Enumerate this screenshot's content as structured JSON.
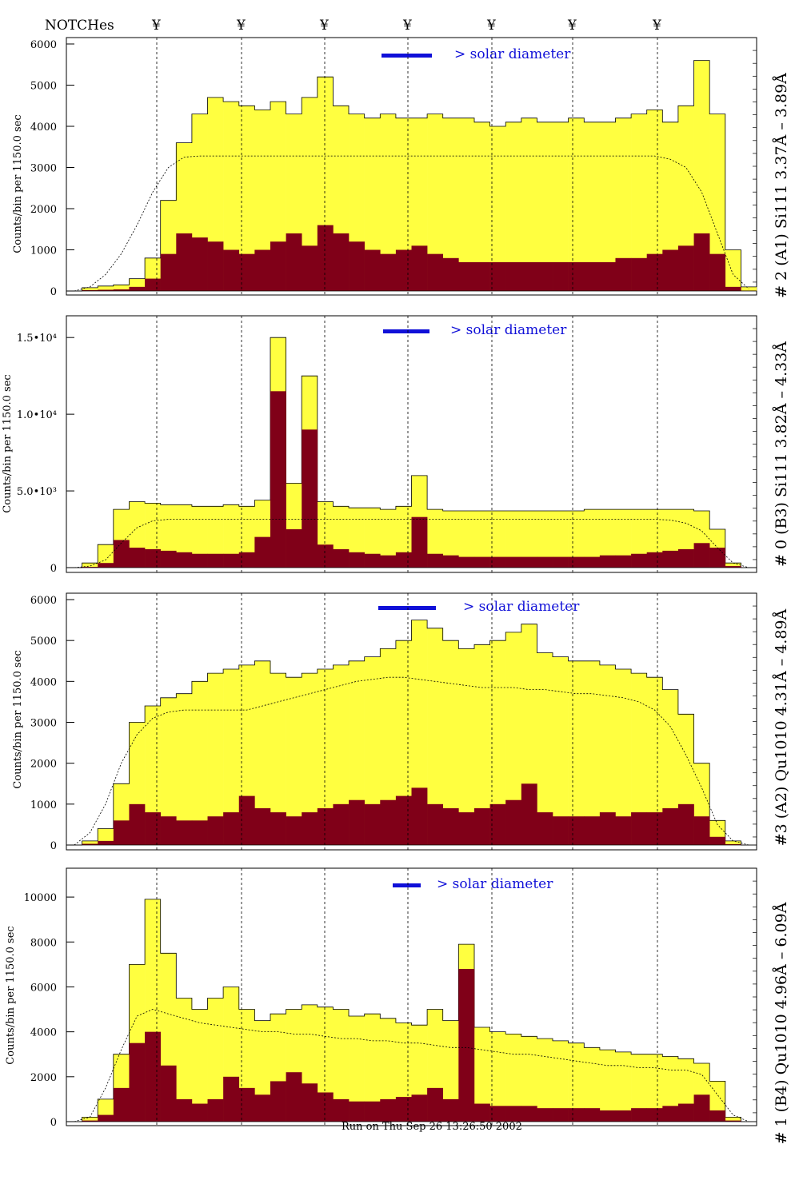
{
  "header": {
    "notches_label": "NOTCHes",
    "notch_marker": "¥"
  },
  "footer": {
    "run_text": "Run on Thu Sep 26 13:26:50 2002"
  },
  "colors": {
    "background": "#ffffff",
    "total_fill": "#ffff40",
    "filtered_fill": "#800018",
    "legend_bar": "#1010d8",
    "annotation_blue": "#1010d8"
  },
  "chart_data": [
    {
      "type": "bar",
      "subtype": "histogram",
      "panel_label": "# 2 (A1) Si111  3.37Å – 3.89Å",
      "ylabel": "Counts/bin per   1150.0 sec",
      "legend_text": "> solar diameter",
      "ylim": [
        0,
        6000
      ],
      "yticks": [
        {
          "v": 0,
          "t": "0"
        },
        {
          "v": 1000,
          "t": "1000"
        },
        {
          "v": 2000,
          "t": "2000"
        },
        {
          "v": 3000,
          "t": "3000"
        },
        {
          "v": 4000,
          "t": "4000"
        },
        {
          "v": 5000,
          "t": "5000"
        },
        {
          "v": 6000,
          "t": "6000"
        }
      ],
      "series": [
        {
          "values_total": [
            0,
            80,
            120,
            150,
            300,
            800,
            2200,
            3600,
            4300,
            4700,
            4600,
            4500,
            4400,
            4600,
            4300,
            4700,
            5200,
            4500,
            4300,
            4200,
            4300,
            4200,
            4200,
            4300,
            4200,
            4200,
            4100,
            4000,
            4100,
            4200,
            4100,
            4100,
            4200,
            4100,
            4100,
            4200,
            4300,
            4400,
            4100,
            4500,
            5600,
            4300,
            1000,
            100
          ]
        },
        {
          "values_filtered": [
            0,
            20,
            30,
            40,
            100,
            300,
            900,
            1400,
            1300,
            1200,
            1000,
            900,
            1000,
            1200,
            1400,
            1100,
            1600,
            1400,
            1200,
            1000,
            900,
            1000,
            1100,
            900,
            800,
            700,
            700,
            700,
            700,
            700,
            700,
            700,
            700,
            700,
            700,
            800,
            800,
            900,
            1000,
            1100,
            1400,
            900,
            100,
            10
          ]
        }
      ],
      "smooth_curve": [
        0,
        100,
        400,
        900,
        1600,
        2400,
        3000,
        3250,
        3280,
        3280,
        3280,
        3280,
        3280,
        3280,
        3280,
        3280,
        3280,
        3280,
        3280,
        3280,
        3280,
        3280,
        3280,
        3280,
        3280,
        3280,
        3280,
        3280,
        3280,
        3280,
        3280,
        3280,
        3280,
        3280,
        3280,
        3280,
        3280,
        3280,
        3200,
        3000,
        2400,
        1400,
        400,
        50
      ]
    },
    {
      "type": "bar",
      "subtype": "histogram",
      "panel_label": "# 0 (B3) Si111  3.82Å – 4.33Å",
      "ylabel": "Counts/bin per   1150.0 sec",
      "legend_text": "> solar diameter",
      "ylim": [
        0,
        16000
      ],
      "yticks": [
        {
          "v": 0,
          "t": "0"
        },
        {
          "v": 5000,
          "t": "5.0•10³"
        },
        {
          "v": 10000,
          "t": "1.0•10⁴"
        },
        {
          "v": 15000,
          "t": "1.5•10⁴"
        }
      ],
      "series": [
        {
          "values_total": [
            0,
            300,
            1500,
            3800,
            4300,
            4200,
            4100,
            4100,
            4000,
            4000,
            4100,
            4000,
            4400,
            15000,
            5500,
            12500,
            4300,
            4000,
            3900,
            3900,
            3800,
            4000,
            6000,
            3800,
            3700,
            3700,
            3700,
            3700,
            3700,
            3700,
            3700,
            3700,
            3700,
            3800,
            3800,
            3800,
            3800,
            3800,
            3800,
            3800,
            3700,
            2500,
            300,
            0
          ]
        },
        {
          "values_filtered": [
            0,
            50,
            300,
            1800,
            1300,
            1200,
            1100,
            1000,
            900,
            900,
            900,
            1000,
            2000,
            11500,
            2500,
            9000,
            1500,
            1200,
            1000,
            900,
            800,
            1000,
            3300,
            900,
            800,
            700,
            700,
            700,
            700,
            700,
            700,
            700,
            700,
            700,
            800,
            800,
            900,
            1000,
            1100,
            1200,
            1600,
            1300,
            100,
            0
          ]
        }
      ],
      "smooth_curve": [
        0,
        100,
        500,
        1600,
        2600,
        3050,
        3150,
        3150,
        3150,
        3150,
        3150,
        3150,
        3150,
        3150,
        3150,
        3150,
        3150,
        3150,
        3150,
        3150,
        3150,
        3150,
        3150,
        3150,
        3150,
        3150,
        3150,
        3150,
        3150,
        3150,
        3150,
        3150,
        3150,
        3150,
        3150,
        3150,
        3150,
        3150,
        3100,
        2900,
        2400,
        1300,
        300,
        0
      ]
    },
    {
      "type": "bar",
      "subtype": "histogram",
      "panel_label": "#3 (A2) Qu1010  4.31Å – 4.89Å",
      "ylabel": "Counts/bin per   1150.0 sec",
      "legend_text": "> solar diameter",
      "ylim": [
        0,
        6000
      ],
      "yticks": [
        {
          "v": 0,
          "t": "0"
        },
        {
          "v": 1000,
          "t": "1000"
        },
        {
          "v": 2000,
          "t": "2000"
        },
        {
          "v": 3000,
          "t": "3000"
        },
        {
          "v": 4000,
          "t": "4000"
        },
        {
          "v": 5000,
          "t": "5000"
        },
        {
          "v": 6000,
          "t": "6000"
        }
      ],
      "series": [
        {
          "values_total": [
            0,
            100,
            400,
            1500,
            3000,
            3400,
            3600,
            3700,
            4000,
            4200,
            4300,
            4400,
            4500,
            4200,
            4100,
            4200,
            4300,
            4400,
            4500,
            4600,
            4800,
            5000,
            5500,
            5300,
            5000,
            4800,
            4900,
            5000,
            5200,
            5400,
            4700,
            4600,
            4500,
            4500,
            4400,
            4300,
            4200,
            4100,
            3800,
            3200,
            2000,
            600,
            100,
            0
          ]
        },
        {
          "values_filtered": [
            0,
            30,
            100,
            600,
            1000,
            800,
            700,
            600,
            600,
            700,
            800,
            1200,
            900,
            800,
            700,
            800,
            900,
            1000,
            1100,
            1000,
            1100,
            1200,
            1400,
            1000,
            900,
            800,
            900,
            1000,
            1100,
            1500,
            800,
            700,
            700,
            700,
            800,
            700,
            800,
            800,
            900,
            1000,
            700,
            200,
            20,
            0
          ]
        }
      ],
      "smooth_curve": [
        0,
        300,
        1000,
        2000,
        2700,
        3100,
        3250,
        3300,
        3300,
        3300,
        3300,
        3300,
        3400,
        3500,
        3600,
        3700,
        3800,
        3900,
        4000,
        4050,
        4100,
        4100,
        4050,
        4000,
        3950,
        3900,
        3850,
        3850,
        3850,
        3800,
        3800,
        3750,
        3700,
        3700,
        3650,
        3600,
        3500,
        3300,
        2900,
        2200,
        1400,
        500,
        100,
        0
      ]
    },
    {
      "type": "bar",
      "subtype": "histogram",
      "panel_label": "# 1 (B4) Qu1010 4.96Å – 6.09Å",
      "ylabel": "Counts/bin per   1150.0 sec",
      "legend_text": "> solar diameter",
      "ylim": [
        0,
        11000
      ],
      "yticks": [
        {
          "v": 0,
          "t": "0"
        },
        {
          "v": 2000,
          "t": "2000"
        },
        {
          "v": 4000,
          "t": "4000"
        },
        {
          "v": 6000,
          "t": "6000"
        },
        {
          "v": 8000,
          "t": "8000"
        },
        {
          "v": 10000,
          "t": "10000"
        }
      ],
      "series": [
        {
          "values_total": [
            0,
            200,
            1000,
            3000,
            7000,
            9900,
            7500,
            5500,
            5000,
            5500,
            6000,
            5000,
            4500,
            4800,
            5000,
            5200,
            5100,
            5000,
            4700,
            4800,
            4600,
            4400,
            4300,
            5000,
            4500,
            7900,
            4200,
            4000,
            3900,
            3800,
            3700,
            3600,
            3500,
            3300,
            3200,
            3100,
            3000,
            3000,
            2900,
            2800,
            2600,
            1800,
            200,
            0
          ]
        },
        {
          "values_filtered": [
            0,
            50,
            300,
            1500,
            3500,
            4000,
            2500,
            1000,
            800,
            1000,
            2000,
            1500,
            1200,
            1800,
            2200,
            1700,
            1300,
            1000,
            900,
            900,
            1000,
            1100,
            1200,
            1500,
            1000,
            6800,
            800,
            700,
            700,
            700,
            600,
            600,
            600,
            600,
            500,
            500,
            600,
            600,
            700,
            800,
            1200,
            500,
            50,
            0
          ]
        }
      ],
      "smooth_curve": [
        0,
        200,
        1500,
        3200,
        4700,
        5000,
        4800,
        4600,
        4400,
        4300,
        4200,
        4100,
        4000,
        4000,
        3900,
        3900,
        3800,
        3700,
        3700,
        3600,
        3600,
        3500,
        3500,
        3400,
        3300,
        3300,
        3200,
        3100,
        3000,
        3000,
        2900,
        2800,
        2700,
        2600,
        2500,
        2500,
        2400,
        2400,
        2300,
        2300,
        2100,
        1200,
        300,
        0
      ]
    }
  ]
}
